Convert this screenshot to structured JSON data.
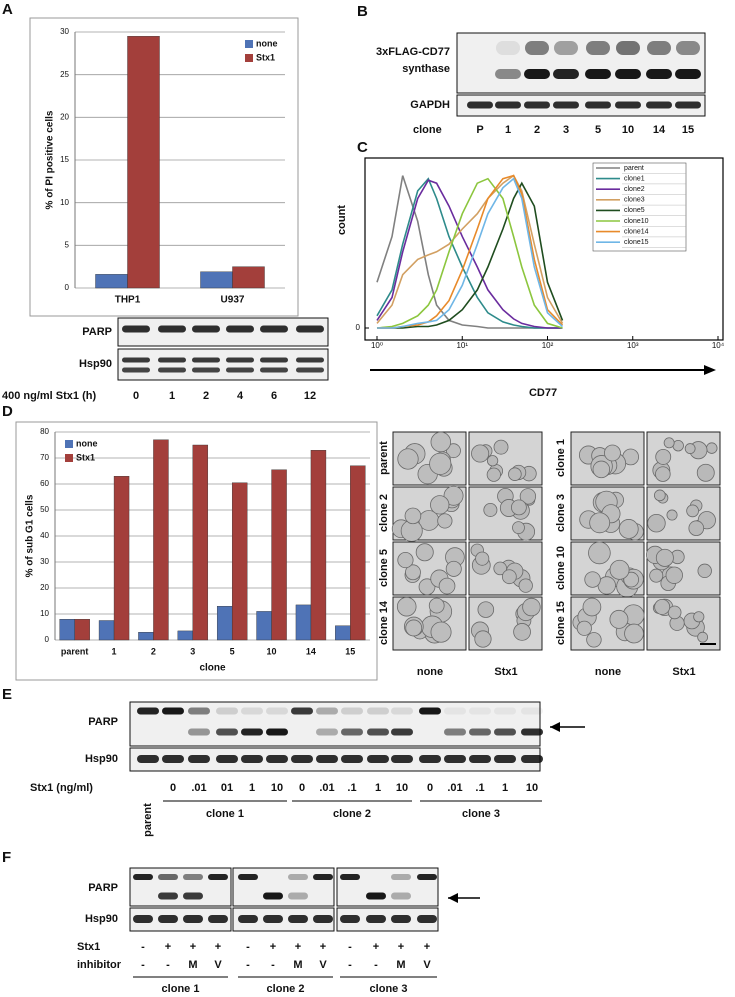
{
  "chart_data": [
    {
      "type": "bar",
      "ylabel": "% of PI positive cells",
      "categories": [
        "THP1",
        "U937"
      ],
      "series": [
        {
          "name": "none",
          "color": "#4f73b6",
          "values": [
            1.6,
            1.9
          ]
        },
        {
          "name": "Stx1",
          "color": "#a33f3b",
          "values": [
            29.5,
            2.5
          ]
        }
      ],
      "ylim": [
        0,
        30
      ],
      "yticks": [
        0,
        5,
        10,
        15,
        20,
        25,
        30
      ],
      "grid": true,
      "legend": "top-right"
    },
    {
      "type": "line",
      "xlabel": "CD77",
      "ylabel": "count",
      "xscale": "log",
      "x": [
        1,
        1.5,
        2,
        3,
        4,
        5,
        7,
        10,
        15,
        20,
        30,
        40,
        50,
        70,
        100,
        150
      ],
      "series": [
        {
          "name": "parent",
          "color": "#808080",
          "values": [
            30,
            60,
            100,
            70,
            35,
            15,
            5,
            2,
            1,
            0,
            0,
            0,
            0,
            0,
            0,
            0
          ]
        },
        {
          "name": "clone1",
          "color": "#2e8b8b",
          "values": [
            8,
            25,
            55,
            90,
            98,
            85,
            60,
            40,
            20,
            10,
            4,
            2,
            1,
            0,
            0,
            0
          ]
        },
        {
          "name": "clone2",
          "color": "#6a2c9e",
          "values": [
            5,
            20,
            50,
            85,
            97,
            95,
            80,
            60,
            40,
            25,
            12,
            6,
            3,
            1,
            0,
            0
          ]
        },
        {
          "name": "clone3",
          "color": "#d2a062",
          "values": [
            3,
            15,
            35,
            45,
            48,
            50,
            55,
            65,
            75,
            85,
            95,
            100,
            90,
            55,
            20,
            3
          ]
        },
        {
          "name": "clone5",
          "color": "#1f4d1f",
          "values": [
            0,
            0,
            0,
            1,
            1,
            2,
            5,
            12,
            25,
            40,
            65,
            85,
            95,
            80,
            30,
            5
          ]
        },
        {
          "name": "clone10",
          "color": "#8cc63e",
          "values": [
            0,
            1,
            3,
            8,
            15,
            25,
            50,
            75,
            95,
            98,
            85,
            60,
            40,
            15,
            3,
            0
          ]
        },
        {
          "name": "clone14",
          "color": "#e88a2a",
          "values": [
            0,
            0,
            1,
            2,
            4,
            8,
            18,
            38,
            65,
            85,
            98,
            100,
            88,
            45,
            12,
            2
          ]
        },
        {
          "name": "clone15",
          "color": "#6fb6e6",
          "values": [
            0,
            0,
            1,
            3,
            4,
            5,
            12,
            28,
            55,
            75,
            92,
            98,
            85,
            40,
            10,
            1
          ]
        }
      ],
      "xlim": [
        1,
        10000
      ],
      "xticks": [
        {
          "value": 1,
          "label": "10⁰"
        },
        {
          "value": 10,
          "label": "10¹"
        },
        {
          "value": 100,
          "label": "10²"
        },
        {
          "value": 1000,
          "label": "10³"
        },
        {
          "value": 10000,
          "label": "10⁴"
        }
      ],
      "ylim": [
        0,
        105
      ],
      "yticks": [
        0
      ],
      "legend": "top-right"
    },
    {
      "type": "bar",
      "xlabel": "clone",
      "ylabel": "% of sub G1 cells",
      "categories": [
        "parent",
        "1",
        "2",
        "3",
        "5",
        "10",
        "14",
        "15"
      ],
      "series": [
        {
          "name": "none",
          "color": "#4f73b6",
          "values": [
            8,
            7.5,
            3,
            3.5,
            13,
            11,
            13.5,
            5.5
          ]
        },
        {
          "name": "Stx1",
          "color": "#a33f3b",
          "values": [
            8,
            63,
            77,
            75,
            60.5,
            65.5,
            73,
            67
          ]
        }
      ],
      "ylim": [
        0,
        80
      ],
      "yticks": [
        0,
        10,
        20,
        30,
        40,
        50,
        60,
        70,
        80
      ],
      "grid": true,
      "legend": "top-left"
    }
  ],
  "figure": {
    "panels": [
      "A",
      "B",
      "C",
      "D",
      "E",
      "F"
    ],
    "blot_a": {
      "rows": [
        "PARP",
        "Hsp90"
      ],
      "treatment": "400 ng/ml Stx1 (h)",
      "lanes": [
        "0",
        "1",
        "2",
        "4",
        "6",
        "12"
      ]
    },
    "blot_b": {
      "target": [
        "3xFLAG-CD77",
        "synthase"
      ],
      "control": "GAPDH",
      "lane_title": "clone",
      "lanes": [
        "P",
        "1",
        "2",
        "3",
        "5",
        "10",
        "14",
        "15"
      ]
    },
    "micrographs": {
      "left_rows": [
        "parent",
        "clone 2",
        "clone 5",
        "clone 14"
      ],
      "right_rows": [
        "clone 1",
        "clone 3",
        "clone 10",
        "clone 15"
      ],
      "columns": [
        "none",
        "Stx1",
        "none",
        "Stx1"
      ]
    },
    "blot_e": {
      "rows": [
        "PARP",
        "Hsp90"
      ],
      "treatment": "Stx1 (ng/ml)",
      "control_lane": "parent",
      "groups": [
        {
          "name": "clone 1",
          "doses": [
            "0",
            ".01",
            "01",
            "1",
            "10"
          ]
        },
        {
          "name": "clone 2",
          "doses": [
            "0",
            ".01",
            ".1",
            "1",
            "10"
          ]
        },
        {
          "name": "clone 3",
          "doses": [
            "0",
            ".01",
            ".1",
            "1",
            "10"
          ]
        }
      ]
    },
    "blot_f": {
      "rows": [
        "PARP",
        "Hsp90"
      ],
      "conditions": [
        "Stx1",
        "inhibitor"
      ],
      "groups": [
        {
          "name": "clone 1",
          "Stx1": [
            "-",
            "+",
            "+",
            "+"
          ],
          "inhibitor": [
            "-",
            "-",
            "M",
            "V"
          ]
        },
        {
          "name": "clone 2",
          "Stx1": [
            "-",
            "+",
            "+",
            "+"
          ],
          "inhibitor": [
            "-",
            "-",
            "M",
            "V"
          ]
        },
        {
          "name": "clone 3",
          "Stx1": [
            "-",
            "+",
            "+",
            "+"
          ],
          "inhibitor": [
            "-",
            "-",
            "M",
            "V"
          ]
        }
      ]
    }
  }
}
